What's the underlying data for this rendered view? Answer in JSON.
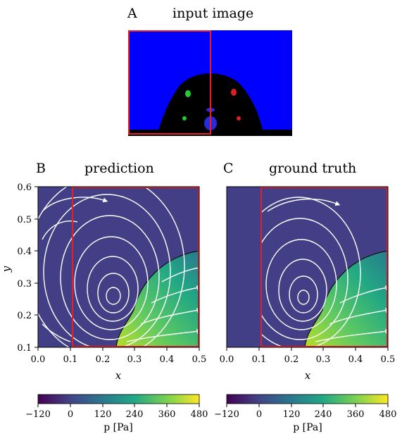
{
  "panels": {
    "A": {
      "letter": "A",
      "title": "input image"
    },
    "B": {
      "letter": "B",
      "title": "prediction"
    },
    "C": {
      "letter": "C",
      "title": "ground truth"
    }
  },
  "axes": {
    "xlabel": "x",
    "ylabel": "y",
    "x_ticks": [
      "0.0",
      "0.1",
      "0.2",
      "0.3",
      "0.4",
      "0.5"
    ],
    "y_ticks": [
      "0.6",
      "0.5",
      "0.4",
      "0.3",
      "0.2",
      "0.1"
    ],
    "xlim": [
      0.0,
      0.5
    ],
    "ylim": [
      0.1,
      0.6
    ]
  },
  "colorbar": {
    "label": "p [Pa]",
    "ticks": [
      "−120",
      "0",
      "120",
      "240",
      "360",
      "480"
    ],
    "range": [
      -120,
      480
    ],
    "colormap": "viridis"
  },
  "colors": {
    "background_fluid": "#433f86",
    "crop_box": "#e0202a",
    "input_blue": "#0000ff",
    "streamlines": "#ffffff"
  },
  "chart_data": [
    {
      "type": "heatmap",
      "name_panel": "prediction",
      "field": "pressure p [Pa]",
      "xlim": [
        0.0,
        0.5
      ],
      "ylim": [
        0.1,
        0.6
      ],
      "clim": [
        -120,
        480
      ]
    },
    {
      "type": "heatmap",
      "name_panel": "ground truth",
      "field": "pressure p [Pa]",
      "xlim": [
        0.0,
        0.5
      ],
      "ylim": [
        0.1,
        0.6
      ],
      "clim": [
        -120,
        480
      ]
    }
  ]
}
